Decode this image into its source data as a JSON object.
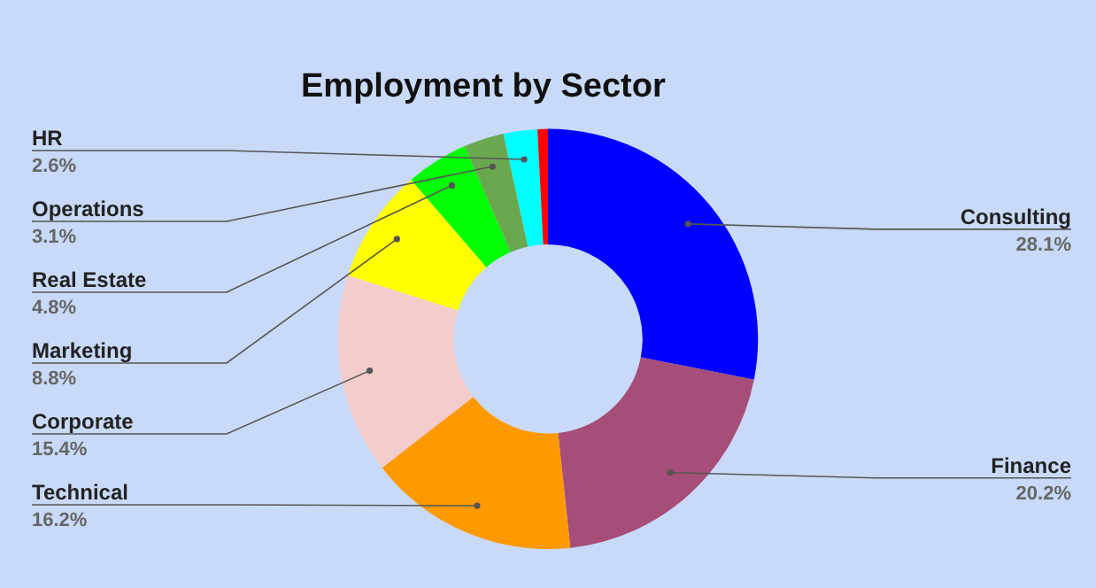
{
  "chart_data": {
    "type": "donut",
    "title": "Employment by Sector",
    "categories": [
      "Consulting",
      "Finance",
      "Technical",
      "Corporate",
      "Marketing",
      "Real Estate",
      "Operations",
      "HR",
      null
    ],
    "values": [
      28.1,
      20.2,
      16.2,
      15.4,
      8.8,
      4.8,
      3.1,
      2.6,
      0.8
    ],
    "colors": [
      "#0000ff",
      "#a64d79",
      "#ff9900",
      "#f4cccc",
      "#ffff00",
      "#00ff00",
      "#6aa84f",
      "#00ffff",
      "#ff0000"
    ],
    "value_labels": [
      "28.1%",
      "20.2%",
      "16.2%",
      "15.4%",
      "8.8%",
      "4.8%",
      "3.1%",
      "2.6%",
      null
    ]
  }
}
